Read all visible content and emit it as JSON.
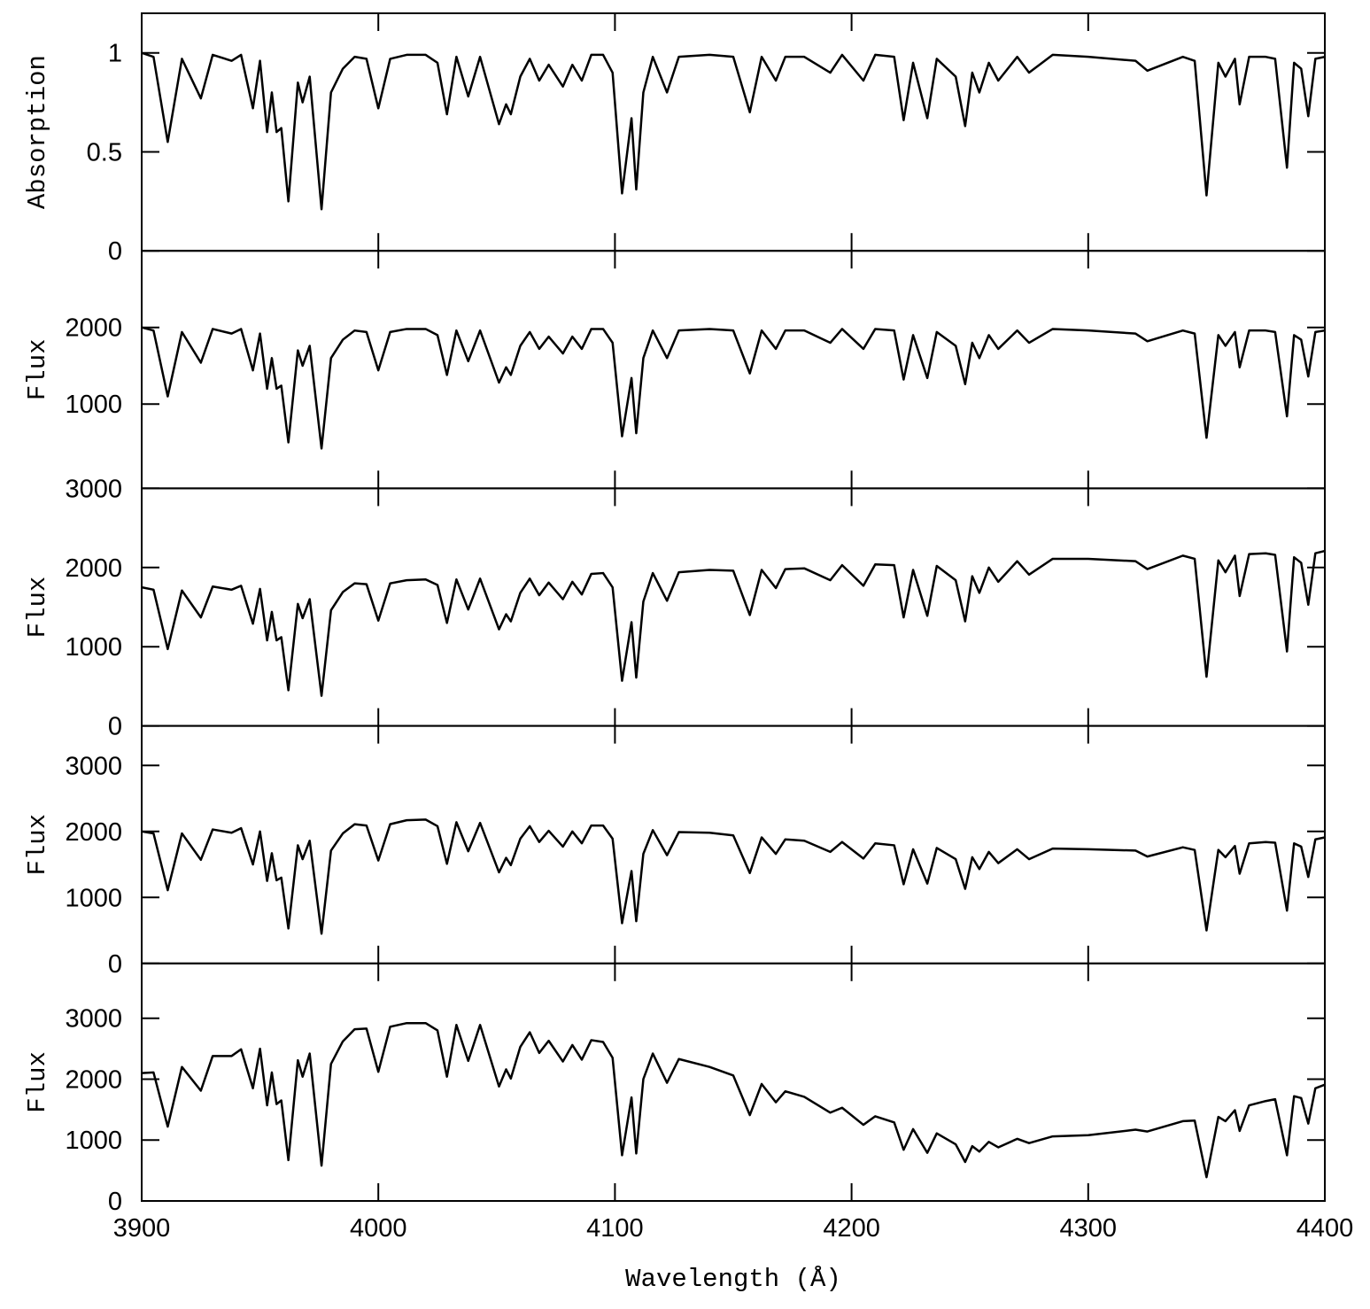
{
  "chart_data": [
    {
      "type": "line",
      "ylabel": "Absorption",
      "color": "#000000",
      "xlim": [
        3900,
        4400
      ],
      "xticks": [
        3900,
        4000,
        4100,
        4200,
        4300,
        4400
      ],
      "ylim": [
        0,
        1.2
      ],
      "yticks": [
        0,
        0.5,
        1
      ],
      "x": [
        3900,
        3905,
        3911,
        3917,
        3925,
        3930,
        3938,
        3942,
        3947,
        3950,
        3953,
        3955,
        3957,
        3959,
        3962,
        3966,
        3968,
        3971,
        3976,
        3980,
        3985,
        3990,
        3995,
        4000,
        4005,
        4012,
        4020,
        4025,
        4029,
        4033,
        4038,
        4043,
        4051,
        4054,
        4056,
        4060,
        4064,
        4068,
        4072,
        4078,
        4082,
        4086,
        4090,
        4095,
        4099,
        4103,
        4107,
        4109,
        4112,
        4116,
        4122,
        4127,
        4140,
        4150,
        4157,
        4162,
        4168,
        4172,
        4180,
        4191,
        4196,
        4205,
        4210,
        4218,
        4222,
        4226,
        4232,
        4236,
        4244,
        4248,
        4251,
        4254,
        4258,
        4262,
        4270,
        4275,
        4285,
        4300,
        4320,
        4325,
        4340,
        4345,
        4350,
        4355,
        4358,
        4362,
        4364,
        4368,
        4375,
        4379,
        4384,
        4387,
        4390,
        4393,
        4396,
        4400
      ],
      "values": [
        1.0,
        0.98,
        0.55,
        0.97,
        0.77,
        0.99,
        0.96,
        0.99,
        0.72,
        0.96,
        0.6,
        0.8,
        0.6,
        0.62,
        0.25,
        0.85,
        0.75,
        0.88,
        0.21,
        0.8,
        0.92,
        0.98,
        0.97,
        0.72,
        0.97,
        0.99,
        0.99,
        0.95,
        0.69,
        0.98,
        0.78,
        0.98,
        0.64,
        0.74,
        0.69,
        0.88,
        0.97,
        0.86,
        0.94,
        0.83,
        0.94,
        0.86,
        0.99,
        0.99,
        0.9,
        0.29,
        0.67,
        0.31,
        0.8,
        0.98,
        0.8,
        0.98,
        0.99,
        0.98,
        0.7,
        0.98,
        0.86,
        0.98,
        0.98,
        0.9,
        0.99,
        0.86,
        0.99,
        0.98,
        0.66,
        0.95,
        0.67,
        0.97,
        0.88,
        0.63,
        0.9,
        0.8,
        0.95,
        0.86,
        0.98,
        0.9,
        0.99,
        0.98,
        0.96,
        0.91,
        0.98,
        0.96,
        0.28,
        0.95,
        0.88,
        0.97,
        0.74,
        0.98,
        0.98,
        0.97,
        0.42,
        0.95,
        0.92,
        0.68,
        0.97,
        0.98
      ]
    },
    {
      "type": "line",
      "ylabel": "Flux",
      "color": "#000000",
      "xlim": [
        3900,
        4400
      ],
      "xticks": [
        3900,
        4000,
        4100,
        4200,
        4300,
        4400
      ],
      "ylim": [
        -100,
        3000
      ],
      "yticks": [
        1000,
        2000
      ],
      "x": [
        3900,
        3905,
        3911,
        3917,
        3925,
        3930,
        3938,
        3942,
        3947,
        3950,
        3953,
        3955,
        3957,
        3959,
        3962,
        3966,
        3968,
        3971,
        3976,
        3980,
        3985,
        3990,
        3995,
        4000,
        4005,
        4012,
        4020,
        4025,
        4029,
        4033,
        4038,
        4043,
        4051,
        4054,
        4056,
        4060,
        4064,
        4068,
        4072,
        4078,
        4082,
        4086,
        4090,
        4095,
        4099,
        4103,
        4107,
        4109,
        4112,
        4116,
        4122,
        4127,
        4140,
        4150,
        4157,
        4162,
        4168,
        4172,
        4180,
        4191,
        4196,
        4205,
        4210,
        4218,
        4222,
        4226,
        4232,
        4236,
        4244,
        4248,
        4251,
        4254,
        4258,
        4262,
        4270,
        4275,
        4285,
        4300,
        4320,
        4325,
        4340,
        4345,
        4350,
        4355,
        4358,
        4362,
        4364,
        4368,
        4375,
        4379,
        4384,
        4387,
        4390,
        4393,
        4396,
        4400
      ],
      "values": [
        2000,
        1960,
        1100,
        1940,
        1540,
        1980,
        1920,
        1980,
        1440,
        1920,
        1200,
        1600,
        1200,
        1240,
        500,
        1700,
        1500,
        1760,
        420,
        1600,
        1840,
        1960,
        1940,
        1440,
        1940,
        1980,
        1980,
        1900,
        1380,
        1960,
        1560,
        1960,
        1280,
        1480,
        1380,
        1760,
        1940,
        1720,
        1880,
        1660,
        1880,
        1720,
        1980,
        1980,
        1800,
        580,
        1340,
        620,
        1600,
        1960,
        1600,
        1960,
        1980,
        1960,
        1400,
        1960,
        1720,
        1960,
        1960,
        1800,
        1980,
        1720,
        1980,
        1960,
        1320,
        1900,
        1340,
        1940,
        1760,
        1260,
        1800,
        1600,
        1900,
        1720,
        1960,
        1800,
        1980,
        1960,
        1920,
        1820,
        1960,
        1920,
        560,
        1900,
        1760,
        1940,
        1480,
        1960,
        1960,
        1940,
        840,
        1900,
        1840,
        1360,
        1940,
        1960
      ]
    },
    {
      "type": "line",
      "ylabel": "Flux",
      "color": "#000000",
      "xlim": [
        3900,
        4400
      ],
      "xticks": [
        3900,
        4000,
        4100,
        4200,
        4300,
        4400
      ],
      "ylim": [
        0,
        3000
      ],
      "yticks": [
        0,
        1000,
        2000,
        3000
      ],
      "x": [
        3900,
        3905,
        3911,
        3917,
        3925,
        3930,
        3938,
        3942,
        3947,
        3950,
        3953,
        3955,
        3957,
        3959,
        3962,
        3966,
        3968,
        3971,
        3976,
        3980,
        3985,
        3990,
        3995,
        4000,
        4005,
        4012,
        4020,
        4025,
        4029,
        4033,
        4038,
        4043,
        4051,
        4054,
        4056,
        4060,
        4064,
        4068,
        4072,
        4078,
        4082,
        4086,
        4090,
        4095,
        4099,
        4103,
        4107,
        4109,
        4112,
        4116,
        4122,
        4127,
        4140,
        4150,
        4157,
        4162,
        4168,
        4172,
        4180,
        4191,
        4196,
        4205,
        4210,
        4218,
        4222,
        4226,
        4232,
        4236,
        4244,
        4248,
        4251,
        4254,
        4258,
        4262,
        4270,
        4275,
        4285,
        4300,
        4320,
        4325,
        4340,
        4345,
        4350,
        4355,
        4358,
        4362,
        4364,
        4368,
        4375,
        4379,
        4384,
        4387,
        4390,
        4393,
        4396,
        4400
      ],
      "values": [
        1750,
        1720,
        970,
        1710,
        1370,
        1760,
        1720,
        1770,
        1290,
        1730,
        1080,
        1440,
        1080,
        1120,
        450,
        1540,
        1360,
        1600,
        380,
        1460,
        1690,
        1800,
        1790,
        1330,
        1800,
        1840,
        1850,
        1780,
        1300,
        1850,
        1470,
        1860,
        1220,
        1410,
        1320,
        1680,
        1860,
        1650,
        1810,
        1600,
        1820,
        1660,
        1920,
        1930,
        1750,
        570,
        1310,
        610,
        1570,
        1930,
        1580,
        1940,
        1970,
        1960,
        1400,
        1970,
        1740,
        1980,
        1990,
        1840,
        2030,
        1770,
        2040,
        2030,
        1370,
        1970,
        1390,
        2020,
        1840,
        1320,
        1890,
        1680,
        2000,
        1820,
        2080,
        1910,
        2110,
        2110,
        2080,
        1980,
        2150,
        2110,
        620,
        2090,
        1940,
        2150,
        1640,
        2170,
        2180,
        2160,
        940,
        2130,
        2060,
        1530,
        2180,
        2210
      ]
    },
    {
      "type": "line",
      "ylabel": "Flux",
      "color": "#000000",
      "xlim": [
        3900,
        4400
      ],
      "xticks": [
        3900,
        4000,
        4100,
        4200,
        4300,
        4400
      ],
      "ylim": [
        0,
        3600
      ],
      "yticks": [
        0,
        1000,
        2000,
        3000
      ],
      "x": [
        3900,
        3905,
        3911,
        3917,
        3925,
        3930,
        3938,
        3942,
        3947,
        3950,
        3953,
        3955,
        3957,
        3959,
        3962,
        3966,
        3968,
        3971,
        3976,
        3980,
        3985,
        3990,
        3995,
        4000,
        4005,
        4012,
        4020,
        4025,
        4029,
        4033,
        4038,
        4043,
        4051,
        4054,
        4056,
        4060,
        4064,
        4068,
        4072,
        4078,
        4082,
        4086,
        4090,
        4095,
        4099,
        4103,
        4107,
        4109,
        4112,
        4116,
        4122,
        4127,
        4140,
        4150,
        4157,
        4162,
        4168,
        4172,
        4180,
        4191,
        4196,
        4205,
        4210,
        4218,
        4222,
        4226,
        4232,
        4236,
        4244,
        4248,
        4251,
        4254,
        4258,
        4262,
        4270,
        4275,
        4285,
        4300,
        4320,
        4325,
        4340,
        4345,
        4350,
        4355,
        4358,
        4362,
        4364,
        4368,
        4375,
        4379,
        4384,
        4387,
        4390,
        4393,
        4396,
        4400
      ],
      "values": [
        2000,
        1970,
        1110,
        1970,
        1570,
        2030,
        1980,
        2050,
        1500,
        2000,
        1250,
        1670,
        1260,
        1300,
        530,
        1790,
        1580,
        1860,
        450,
        1710,
        1970,
        2110,
        2090,
        1560,
        2110,
        2170,
        2180,
        2080,
        1510,
        2140,
        1700,
        2130,
        1380,
        1600,
        1490,
        1890,
        2080,
        1840,
        2010,
        1770,
        2000,
        1820,
        2090,
        2090,
        1890,
        610,
        1400,
        640,
        1660,
        2020,
        1640,
        1990,
        1980,
        1940,
        1370,
        1910,
        1660,
        1880,
        1860,
        1690,
        1840,
        1590,
        1820,
        1790,
        1200,
        1730,
        1210,
        1750,
        1580,
        1130,
        1610,
        1430,
        1690,
        1520,
        1730,
        1580,
        1740,
        1730,
        1710,
        1620,
        1760,
        1720,
        500,
        1720,
        1610,
        1780,
        1360,
        1820,
        1840,
        1830,
        800,
        1820,
        1770,
        1310,
        1880,
        1910
      ]
    },
    {
      "type": "line",
      "ylabel": "Flux",
      "xlabel": "Wavelength (Å)",
      "color": "#000000",
      "xlim": [
        3900,
        4400
      ],
      "xticks": [
        3900,
        4000,
        4100,
        4200,
        4300,
        4400
      ],
      "ylim": [
        0,
        3900
      ],
      "yticks": [
        0,
        1000,
        2000,
        3000
      ],
      "x": [
        3900,
        3905,
        3911,
        3917,
        3925,
        3930,
        3938,
        3942,
        3947,
        3950,
        3953,
        3955,
        3957,
        3959,
        3962,
        3966,
        3968,
        3971,
        3976,
        3980,
        3985,
        3990,
        3995,
        4000,
        4005,
        4012,
        4020,
        4025,
        4029,
        4033,
        4038,
        4043,
        4051,
        4054,
        4056,
        4060,
        4064,
        4068,
        4072,
        4078,
        4082,
        4086,
        4090,
        4095,
        4099,
        4103,
        4107,
        4109,
        4112,
        4116,
        4122,
        4127,
        4140,
        4150,
        4157,
        4162,
        4168,
        4172,
        4180,
        4191,
        4196,
        4205,
        4210,
        4218,
        4222,
        4226,
        4232,
        4236,
        4244,
        4248,
        4251,
        4254,
        4258,
        4262,
        4270,
        4275,
        4285,
        4300,
        4320,
        4325,
        4340,
        4345,
        4350,
        4355,
        4358,
        4362,
        4364,
        4368,
        4375,
        4379,
        4384,
        4387,
        4390,
        4393,
        4396,
        4400
      ],
      "values": [
        2100,
        2110,
        1220,
        2200,
        1810,
        2380,
        2380,
        2490,
        1850,
        2500,
        1570,
        2110,
        1590,
        1650,
        670,
        2310,
        2040,
        2420,
        580,
        2250,
        2620,
        2820,
        2830,
        2120,
        2860,
        2920,
        2920,
        2800,
        2040,
        2890,
        2300,
        2890,
        1880,
        2160,
        2010,
        2530,
        2770,
        2430,
        2630,
        2290,
        2560,
        2320,
        2640,
        2610,
        2350,
        750,
        1700,
        780,
        2000,
        2420,
        1940,
        2330,
        2200,
        2060,
        1410,
        1920,
        1620,
        1800,
        1710,
        1450,
        1530,
        1250,
        1390,
        1290,
        840,
        1180,
        790,
        1110,
        930,
        640,
        900,
        810,
        970,
        880,
        1020,
        950,
        1060,
        1080,
        1170,
        1140,
        1310,
        1320,
        390,
        1380,
        1310,
        1490,
        1150,
        1570,
        1640,
        1670,
        750,
        1720,
        1690,
        1270,
        1850,
        1910
      ]
    }
  ]
}
